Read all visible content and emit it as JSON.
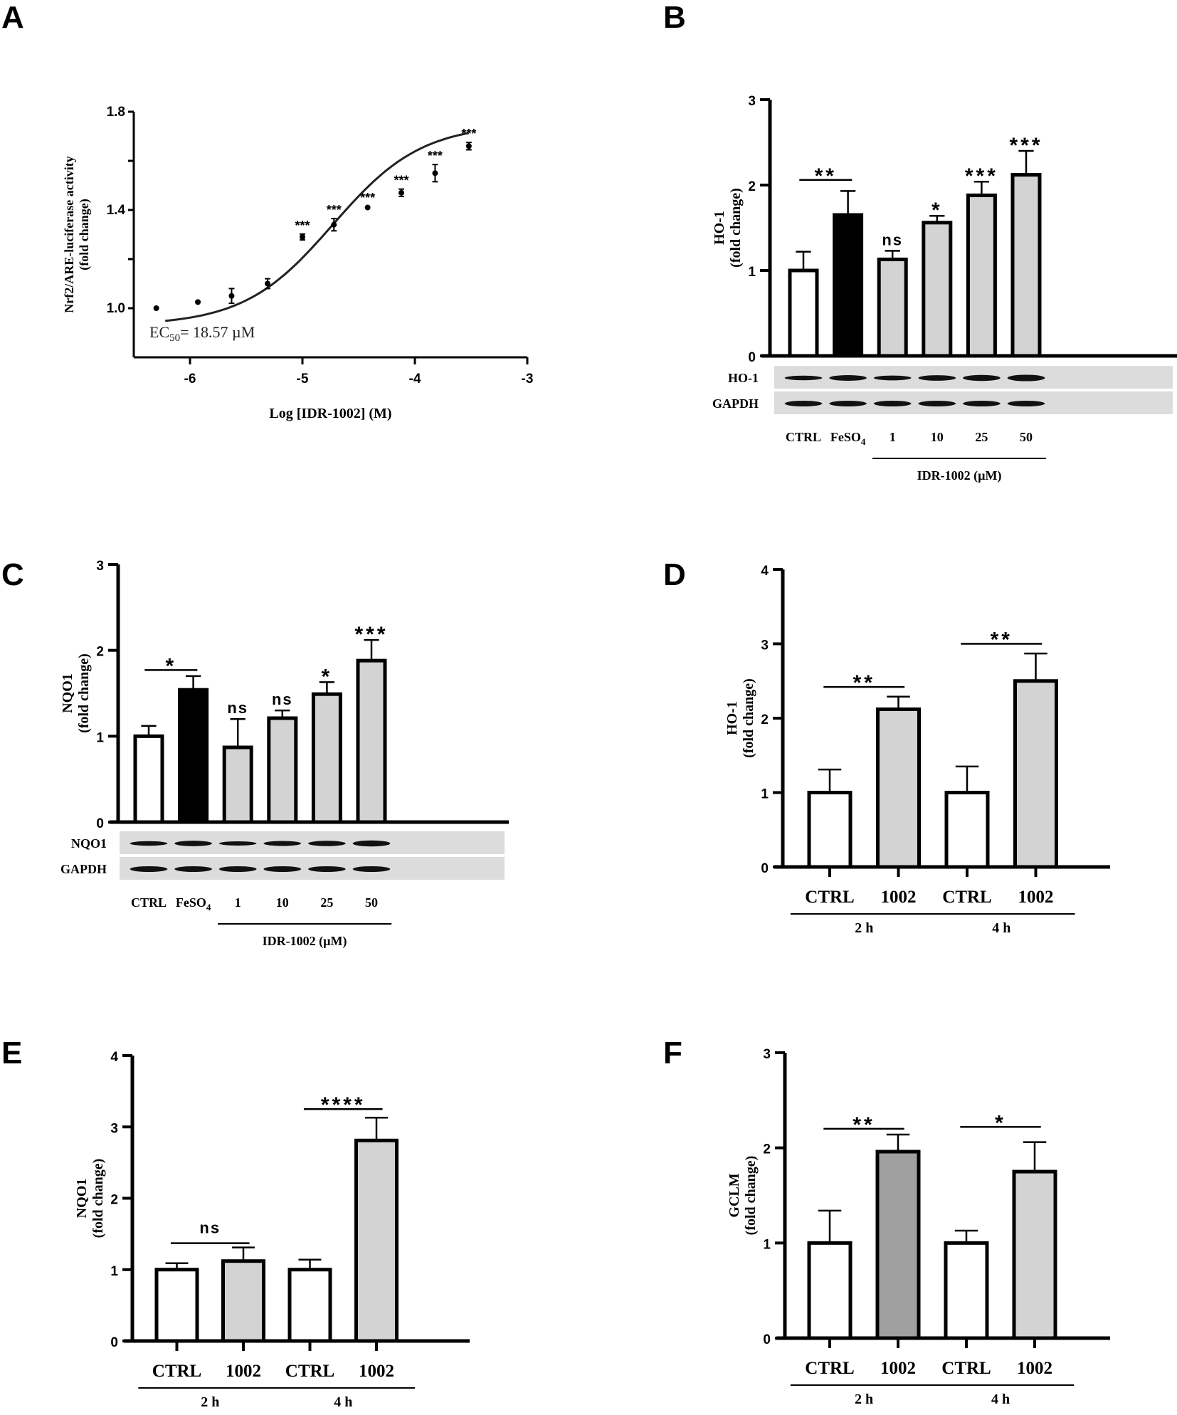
{
  "panels": {
    "A": {
      "letter": "A"
    },
    "B": {
      "letter": "B"
    },
    "C": {
      "letter": "C"
    },
    "D": {
      "letter": "D"
    },
    "E": {
      "letter": "E"
    },
    "F": {
      "letter": "F"
    }
  },
  "chart_data": [
    {
      "id": "A",
      "type": "scatter",
      "title": "",
      "xlabel": "Log [IDR-1002] (M)",
      "ylabel": "Nrf2/ARE-luciferase activity",
      "ylabel2": "(fold change)",
      "xlim": [
        -6.5,
        -3
      ],
      "ylim": [
        0.8,
        1.8
      ],
      "xticks": [
        -6,
        -5,
        -4,
        -3
      ],
      "xtick_labels": [
        "-6",
        "-5",
        "-4",
        "-3"
      ],
      "yticks": [
        1.0,
        1.2,
        1.4,
        1.6,
        1.8
      ],
      "ytick_labels": [
        "1.0",
        "",
        "1.4",
        "",
        "1.8"
      ],
      "annotation": {
        "prefix": "EC",
        "sub": "50",
        "suffix": "= 18.57 µM"
      },
      "points": [
        {
          "x": -6.3,
          "y": 1.0,
          "err": 0.005,
          "sig": ""
        },
        {
          "x": -5.93,
          "y": 1.025,
          "err": 0.005,
          "sig": ""
        },
        {
          "x": -5.63,
          "y": 1.05,
          "err": 0.03,
          "sig": ""
        },
        {
          "x": -5.31,
          "y": 1.1,
          "err": 0.02,
          "sig": ""
        },
        {
          "x": -5.0,
          "y": 1.29,
          "err": 0.012,
          "sig": "***"
        },
        {
          "x": -4.72,
          "y": 1.34,
          "err": 0.025,
          "sig": "***"
        },
        {
          "x": -4.42,
          "y": 1.41,
          "err": 0.005,
          "sig": "***"
        },
        {
          "x": -4.12,
          "y": 1.47,
          "err": 0.015,
          "sig": "***"
        },
        {
          "x": -3.82,
          "y": 1.55,
          "err": 0.035,
          "sig": "***"
        },
        {
          "x": -3.52,
          "y": 1.66,
          "err": 0.015,
          "sig": "***"
        }
      ],
      "fit": {
        "bottom": 0.93,
        "top": 1.75,
        "logEC50": -4.73,
        "hill": 0.55,
        "xrange": [
          -6.22,
          -3.52
        ]
      }
    },
    {
      "id": "B",
      "type": "bar",
      "ylabel": "HO-1",
      "ylabel2": "(fold change)",
      "ylim": [
        0,
        3
      ],
      "yticks": [
        0,
        1,
        2,
        3
      ],
      "categories": [
        "CTRL",
        "FeSO4",
        "1",
        "10",
        "25",
        "50"
      ],
      "values": [
        1.0,
        1.65,
        1.13,
        1.56,
        1.88,
        2.12
      ],
      "errors": [
        0.22,
        0.28,
        0.1,
        0.08,
        0.16,
        0.28
      ],
      "fills": [
        "#ffffff",
        "#000000",
        "#d3d3d3",
        "#d3d3d3",
        "#d3d3d3",
        "#d3d3d3"
      ],
      "sig_labels": [
        "",
        "",
        "ns",
        "*",
        "***",
        "***"
      ],
      "bracket": {
        "from": 0,
        "to": 1,
        "y": 2.06,
        "label": "**"
      },
      "blot": {
        "rows": [
          "HO-1",
          "GAPDH"
        ]
      },
      "lane_labels": [
        "CTRL",
        "FeSO",
        "1",
        "10",
        "25",
        "50"
      ],
      "lane_sub": [
        "",
        "4",
        "",
        "",
        "",
        ""
      ],
      "group_label": "IDR-1002 (µM)"
    },
    {
      "id": "C",
      "type": "bar",
      "ylabel": "NQO1",
      "ylabel2": "(fold change)",
      "ylim": [
        0,
        3
      ],
      "yticks": [
        0,
        1,
        2,
        3
      ],
      "categories": [
        "CTRL",
        "FeSO4",
        "1",
        "10",
        "25",
        "50"
      ],
      "values": [
        1.0,
        1.54,
        0.87,
        1.21,
        1.49,
        1.88
      ],
      "errors": [
        0.12,
        0.16,
        0.33,
        0.09,
        0.14,
        0.24
      ],
      "fills": [
        "#ffffff",
        "#000000",
        "#d3d3d3",
        "#d3d3d3",
        "#d3d3d3",
        "#d3d3d3"
      ],
      "sig_labels": [
        "",
        "",
        "ns",
        "ns",
        "*",
        "***"
      ],
      "bracket": {
        "from": 0,
        "to": 1,
        "y": 1.77,
        "label": "*"
      },
      "blot": {
        "rows": [
          "NQO1",
          "GAPDH"
        ]
      },
      "lane_labels": [
        "CTRL",
        "FeSO",
        "1",
        "10",
        "25",
        "50"
      ],
      "lane_sub": [
        "",
        "4",
        "",
        "",
        "",
        ""
      ],
      "group_label": "IDR-1002 (µM)"
    },
    {
      "id": "D",
      "type": "bar",
      "ylabel": "HO-1",
      "ylabel2": "(fold change)",
      "ylim": [
        0,
        4
      ],
      "yticks": [
        0,
        1,
        2,
        3,
        4
      ],
      "categories": [
        "CTRL",
        "1002",
        "CTRL",
        "1002"
      ],
      "values": [
        1.0,
        2.12,
        1.0,
        2.5
      ],
      "errors": [
        0.31,
        0.17,
        0.35,
        0.37
      ],
      "fills": [
        "#ffffff",
        "#d3d3d3",
        "#ffffff",
        "#d3d3d3"
      ],
      "brackets": [
        {
          "from": 0,
          "to": 1,
          "y": 2.42,
          "label": "**"
        },
        {
          "from": 2,
          "to": 3,
          "y": 3.0,
          "label": "**"
        }
      ],
      "groups": [
        {
          "label": "2 h",
          "from": 0,
          "to": 1
        },
        {
          "label": "4 h",
          "from": 2,
          "to": 3
        }
      ]
    },
    {
      "id": "E",
      "type": "bar",
      "ylabel": "NQO1",
      "ylabel2": "(fold change)",
      "ylim": [
        0,
        4
      ],
      "yticks": [
        0,
        1,
        2,
        3,
        4
      ],
      "categories": [
        "CTRL",
        "1002",
        "CTRL",
        "1002"
      ],
      "values": [
        1.0,
        1.12,
        1.0,
        2.81
      ],
      "errors": [
        0.09,
        0.19,
        0.14,
        0.32
      ],
      "fills": [
        "#ffffff",
        "#d3d3d3",
        "#ffffff",
        "#d3d3d3"
      ],
      "brackets": [
        {
          "from": 0,
          "to": 1,
          "y": 1.37,
          "label": "ns"
        },
        {
          "from": 2,
          "to": 3,
          "y": 3.25,
          "label": "****"
        }
      ],
      "groups": [
        {
          "label": "2 h",
          "from": 0,
          "to": 1
        },
        {
          "label": "4 h",
          "from": 2,
          "to": 3
        }
      ]
    },
    {
      "id": "F",
      "type": "bar",
      "ylabel": "GCLM",
      "ylabel2": "(fold change)",
      "ylim": [
        0,
        3
      ],
      "yticks": [
        0,
        1,
        2,
        3
      ],
      "categories": [
        "CTRL",
        "1002",
        "CTRL",
        "1002"
      ],
      "values": [
        1.0,
        1.96,
        1.0,
        1.75
      ],
      "errors": [
        0.34,
        0.18,
        0.13,
        0.31
      ],
      "fills": [
        "#ffffff",
        "#a0a0a0",
        "#ffffff",
        "#d3d3d3"
      ],
      "brackets": [
        {
          "from": 0,
          "to": 1,
          "y": 2.2,
          "label": "**"
        },
        {
          "from": 2,
          "to": 3,
          "y": 2.22,
          "label": "*"
        }
      ],
      "groups": [
        {
          "label": "2 h",
          "from": 0,
          "to": 1
        },
        {
          "label": "4 h",
          "from": 2,
          "to": 3
        }
      ]
    }
  ]
}
